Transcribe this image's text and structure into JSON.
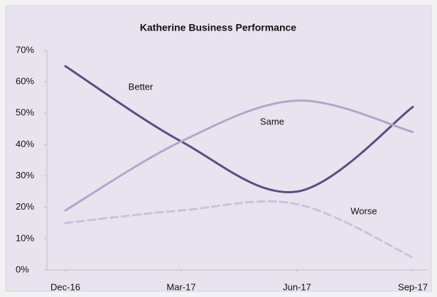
{
  "chart_data": {
    "type": "line",
    "title": "Katherine Business Performance",
    "categories": [
      "Dec-16",
      "Mar-17",
      "Jun-17",
      "Sep-17"
    ],
    "series": [
      {
        "name": "Better",
        "color": "#5e4b80",
        "dashed": false,
        "values": [
          65,
          41,
          25,
          52
        ]
      },
      {
        "name": "Same",
        "color": "#b3a6cb",
        "dashed": false,
        "values": [
          19,
          41,
          54,
          44
        ]
      },
      {
        "name": "Worse",
        "color": "#cbc1dd",
        "dashed": true,
        "values": [
          15,
          19,
          21,
          4
        ]
      }
    ],
    "ylim": [
      0,
      70
    ],
    "yticks": [
      {
        "value": 0,
        "label": "0%"
      },
      {
        "value": 10,
        "label": "10%"
      },
      {
        "value": 20,
        "label": "20%"
      },
      {
        "value": 30,
        "label": "30%"
      },
      {
        "value": 40,
        "label": "40%"
      },
      {
        "value": 50,
        "label": "50%"
      },
      {
        "value": 60,
        "label": "60%"
      },
      {
        "value": 70,
        "label": "70%"
      }
    ],
    "grid": false
  }
}
